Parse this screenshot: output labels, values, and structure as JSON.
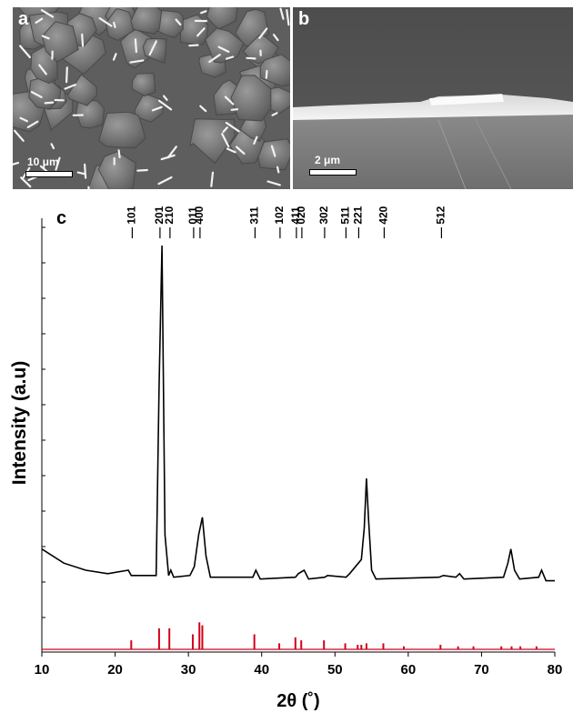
{
  "panels": {
    "a": {
      "letter": "a",
      "scale_label": "10 μm"
    },
    "b": {
      "letter": "b",
      "scale_label": "2 μm"
    },
    "c": {
      "letter": "c"
    }
  },
  "chart_data": {
    "type": "line",
    "xlabel": "2θ (˚)",
    "ylabel": "Intensity (a.u)",
    "xlim": [
      10,
      80
    ],
    "xticks": [
      10,
      20,
      30,
      40,
      50,
      60,
      70,
      80
    ],
    "grid": false,
    "colors": {
      "measured": "#000000",
      "reference": "#d0021b"
    },
    "series": [
      {
        "style": "measured",
        "x": [
          10,
          13,
          16,
          19,
          21.8,
          22.2,
          25.6,
          26.0,
          26.4,
          26.8,
          27.3,
          27.6,
          28.0,
          30.2,
          30.8,
          31.4,
          31.9,
          32.4,
          33.0,
          38.8,
          39.2,
          39.8,
          44.6,
          45.0,
          45.8,
          46.4,
          48.6,
          49.0,
          51.5,
          52.0,
          53.6,
          54.0,
          54.3,
          54.6,
          55.0,
          55.6,
          64.2,
          64.8,
          66.5,
          67.0,
          67.6,
          73.0,
          73.6,
          74.0,
          74.5,
          75.2,
          77.8,
          78.2,
          78.8,
          80
        ],
        "y": [
          0.14,
          0.1,
          0.08,
          0.07,
          0.08,
          0.065,
          0.065,
          0.6,
          1.0,
          0.18,
          0.065,
          0.08,
          0.06,
          0.065,
          0.09,
          0.18,
          0.23,
          0.12,
          0.06,
          0.06,
          0.08,
          0.055,
          0.06,
          0.07,
          0.08,
          0.055,
          0.06,
          0.065,
          0.06,
          0.07,
          0.11,
          0.2,
          0.34,
          0.22,
          0.08,
          0.055,
          0.06,
          0.065,
          0.06,
          0.07,
          0.055,
          0.06,
          0.1,
          0.14,
          0.08,
          0.055,
          0.06,
          0.08,
          0.05,
          0.05
        ]
      }
    ],
    "reference_peaks": {
      "x": [
        22.2,
        26.0,
        27.4,
        30.6,
        31.5,
        31.9,
        39.0,
        42.4,
        44.6,
        45.4,
        48.5,
        51.4,
        53.1,
        53.6,
        54.3,
        56.6,
        59.4,
        64.4,
        66.8,
        68.9,
        72.7,
        74.1,
        75.3,
        77.5
      ],
      "y": [
        0.03,
        0.07,
        0.07,
        0.05,
        0.09,
        0.08,
        0.05,
        0.02,
        0.04,
        0.03,
        0.03,
        0.02,
        0.015,
        0.015,
        0.02,
        0.02,
        0.01,
        0.015,
        0.01,
        0.01,
        0.01,
        0.01,
        0.01,
        0.01
      ]
    },
    "hkl_annotations": [
      {
        "label": "101",
        "x": 22.2
      },
      {
        "label": "201",
        "x": 26.0
      },
      {
        "label": "210",
        "x": 27.4
      },
      {
        "label": "011",
        "x": 30.6
      },
      {
        "label": "400",
        "x": 31.5
      },
      {
        "label": "311",
        "x": 39.0
      },
      {
        "label": "102",
        "x": 42.4
      },
      {
        "label": "411",
        "x": 44.6
      },
      {
        "label": "020",
        "x": 45.4
      },
      {
        "label": "302",
        "x": 48.5
      },
      {
        "label": "511",
        "x": 51.4
      },
      {
        "label": "221",
        "x": 53.1
      },
      {
        "label": "420",
        "x": 56.6
      },
      {
        "label": "512",
        "x": 64.4
      }
    ]
  }
}
